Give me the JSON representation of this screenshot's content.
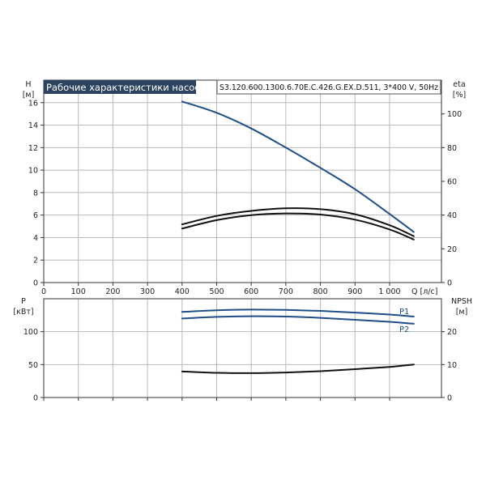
{
  "colors": {
    "head": "#1f4e86",
    "eta": "#111111",
    "power": "#1f4e86",
    "npsh": "#111111",
    "grid": "#b8b8b8",
    "title_bg": "#2c4360"
  },
  "header": {
    "title": "Рабочие характеристики насоса",
    "model": "S3.120.600.1300.6.70E.C.426.G.EX.D.511, 3*400 V, 50Hz"
  },
  "chart_data": [
    {
      "type": "line",
      "title": "Рабочие характеристики насоса",
      "x_axis": {
        "label": "Q [л/с]",
        "range": [
          0,
          1150
        ],
        "ticks": [
          0,
          100,
          200,
          300,
          400,
          500,
          600,
          700,
          800,
          900,
          1000
        ],
        "tick_labels": [
          "0",
          "100",
          "200",
          "300",
          "400",
          "500",
          "600",
          "700",
          "800",
          "900",
          "1 000"
        ]
      },
      "y_axis_left": {
        "label": [
          "H",
          "[м]"
        ],
        "range": [
          0,
          18
        ],
        "ticks": [
          0,
          2,
          4,
          6,
          8,
          10,
          12,
          14,
          16
        ]
      },
      "y_axis_right": {
        "label": [
          "eta",
          "[%]"
        ],
        "range": [
          0,
          120
        ],
        "ticks": [
          0,
          20,
          40,
          60,
          80,
          100
        ]
      },
      "grid": true,
      "series": [
        {
          "axis": "left",
          "color": "#1f4e86",
          "x": [
            400,
            500,
            600,
            700,
            800,
            900,
            1000,
            1070
          ],
          "y": [
            16.1,
            15.1,
            13.7,
            12.0,
            10.2,
            8.3,
            6.1,
            4.5
          ]
        },
        {
          "axis": "right",
          "color": "#111111",
          "x": [
            400,
            500,
            600,
            700,
            800,
            900,
            1000,
            1070
          ],
          "y": [
            34.5,
            39.5,
            42.5,
            44.0,
            43.5,
            40.5,
            34.0,
            27.5
          ]
        },
        {
          "axis": "right",
          "color": "#111111",
          "x": [
            400,
            500,
            600,
            700,
            800,
            900,
            1000,
            1070
          ],
          "y": [
            32.0,
            37.0,
            40.0,
            41.0,
            40.3,
            37.3,
            31.5,
            25.5
          ]
        }
      ]
    },
    {
      "type": "line",
      "x_axis": {
        "range": [
          0,
          1150
        ],
        "ticks": [
          0,
          100,
          200,
          300,
          400,
          500,
          600,
          700,
          800,
          900,
          1000
        ]
      },
      "y_axis_left": {
        "label": [
          "P",
          "[кВт]"
        ],
        "range": [
          0,
          150
        ],
        "ticks": [
          0,
          50,
          100
        ]
      },
      "y_axis_right": {
        "label": [
          "NPSH",
          "[м]"
        ],
        "range": [
          0,
          30
        ],
        "ticks": [
          0,
          10,
          20
        ]
      },
      "grid": true,
      "series": [
        {
          "name": "P1",
          "axis": "left",
          "color": "#1f4e86",
          "x": [
            400,
            500,
            600,
            700,
            800,
            900,
            1000,
            1070
          ],
          "y": [
            130,
            132.5,
            133.5,
            133,
            131.5,
            129,
            126,
            123
          ]
        },
        {
          "name": "P2",
          "axis": "left",
          "color": "#1f4e86",
          "x": [
            400,
            500,
            600,
            700,
            800,
            900,
            1000,
            1070
          ],
          "y": [
            120,
            122.5,
            123.5,
            123,
            121,
            118,
            115,
            112
          ]
        },
        {
          "axis": "right",
          "color": "#111111",
          "x": [
            400,
            500,
            600,
            700,
            800,
            900,
            1000,
            1070
          ],
          "y": [
            7.9,
            7.5,
            7.4,
            7.6,
            8.0,
            8.6,
            9.3,
            10.0
          ]
        }
      ]
    }
  ]
}
